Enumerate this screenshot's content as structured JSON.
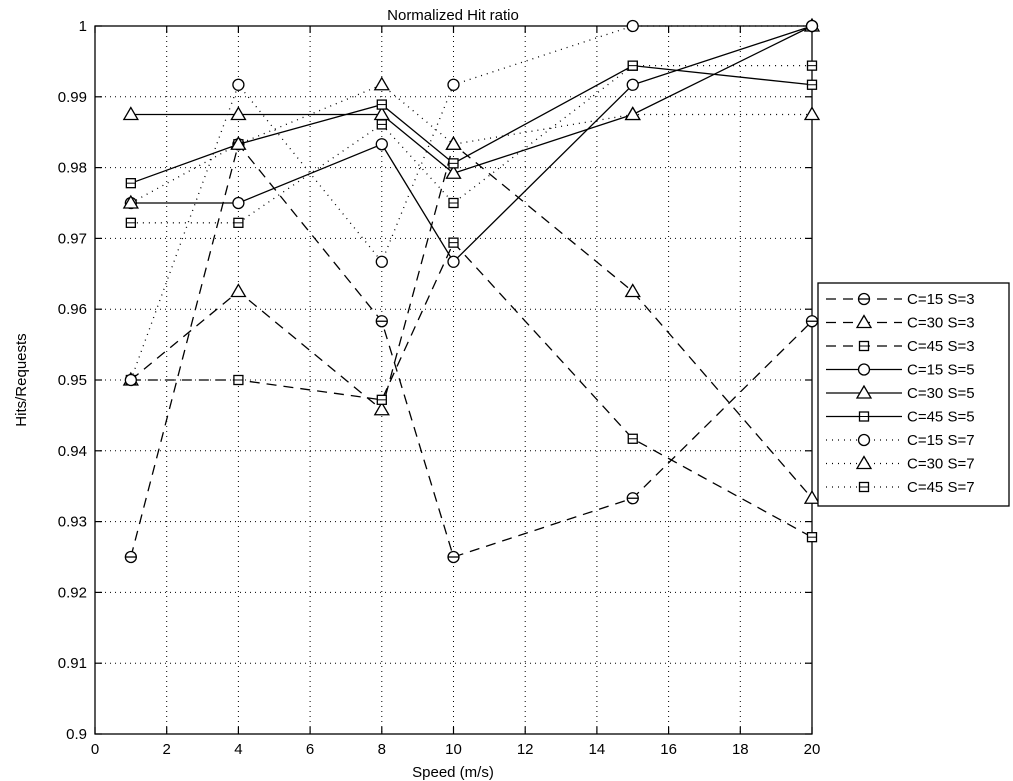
{
  "chart_data": {
    "type": "line",
    "title": "Normalized Hit ratio",
    "xlabel": "Speed (m/s)",
    "ylabel": "Hits/Requests",
    "xlim": [
      0,
      20
    ],
    "ylim": [
      0.9,
      1
    ],
    "xticks": [
      0,
      2,
      4,
      6,
      8,
      10,
      12,
      14,
      16,
      18,
      20
    ],
    "yticks": [
      0.9,
      0.91,
      0.92,
      0.93,
      0.94,
      0.95,
      0.96,
      0.97,
      0.98,
      0.99,
      1
    ],
    "xtick_labels": [
      "0",
      "2",
      "4",
      "6",
      "8",
      "10",
      "12",
      "14",
      "16",
      "18",
      "20"
    ],
    "ytick_labels": [
      "0.9",
      "0.91",
      "0.92",
      "0.93",
      "0.94",
      "0.95",
      "0.96",
      "0.97",
      "0.98",
      "0.99",
      "1"
    ],
    "grid": true,
    "legend_position": "outside-right",
    "x": [
      1,
      4,
      8,
      10,
      15,
      20
    ],
    "series": [
      {
        "name": "C=15 S=3",
        "line": "dashed",
        "marker": "circle-bar",
        "values": [
          0.925,
          0.9833,
          0.9583,
          0.925,
          0.9333,
          0.9583
        ]
      },
      {
        "name": "C=30 S=3",
        "line": "dashed",
        "marker": "triangle",
        "values": [
          0.95,
          0.9625,
          0.9458,
          0.9833,
          0.9625,
          0.9333
        ]
      },
      {
        "name": "C=45 S=3",
        "line": "dashed",
        "marker": "square",
        "values": [
          0.95,
          0.95,
          0.9472,
          0.9694,
          0.9417,
          0.9278
        ]
      },
      {
        "name": "C=15 S=5",
        "line": "solid",
        "marker": "circle",
        "values": [
          0.975,
          0.975,
          0.9833,
          0.9667,
          0.9917,
          1.0
        ]
      },
      {
        "name": "C=30 S=5",
        "line": "solid",
        "marker": "triangle",
        "values": [
          0.9875,
          0.9875,
          0.9875,
          0.9792,
          0.9875,
          1.0
        ]
      },
      {
        "name": "C=45 S=5",
        "line": "solid",
        "marker": "square",
        "values": [
          0.9778,
          0.9833,
          0.9889,
          0.9806,
          0.9944,
          0.9917
        ]
      },
      {
        "name": "C=15 S=7",
        "line": "dotted",
        "marker": "circle",
        "values": [
          0.95,
          0.9917,
          0.9667,
          0.9917,
          1.0,
          1.0
        ]
      },
      {
        "name": "C=30 S=7",
        "line": "dotted",
        "marker": "triangle",
        "values": [
          0.975,
          0.9833,
          0.9917,
          0.9833,
          0.9875,
          0.9875
        ]
      },
      {
        "name": "C=45 S=7",
        "line": "dotted",
        "marker": "square",
        "values": [
          0.9722,
          0.9722,
          0.9861,
          0.975,
          0.9944,
          0.9944
        ]
      }
    ]
  }
}
